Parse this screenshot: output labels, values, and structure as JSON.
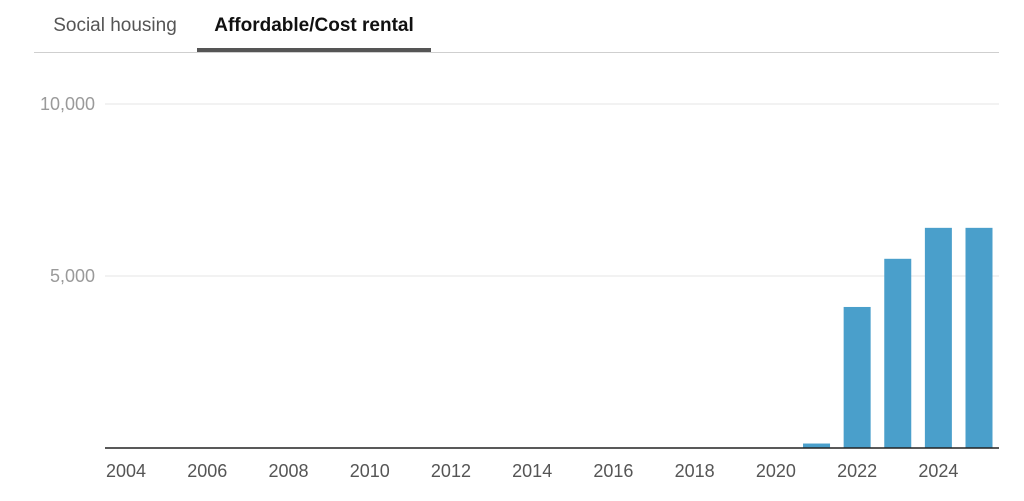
{
  "tabs": [
    {
      "label": "Social housing",
      "active": false
    },
    {
      "label": "Affordable/Cost rental",
      "active": true
    }
  ],
  "chart_data": {
    "type": "bar",
    "x": [
      2004,
      2005,
      2006,
      2007,
      2008,
      2009,
      2010,
      2011,
      2012,
      2013,
      2014,
      2015,
      2016,
      2017,
      2018,
      2019,
      2020,
      2021,
      2022,
      2023,
      2024,
      2025
    ],
    "values": [
      0,
      0,
      0,
      0,
      0,
      0,
      0,
      0,
      0,
      0,
      0,
      0,
      0,
      0,
      0,
      0,
      0,
      130,
      4100,
      5500,
      6400,
      6400
    ],
    "x_tick_labels": [
      "2004",
      "2006",
      "2008",
      "2010",
      "2012",
      "2014",
      "2016",
      "2018",
      "2020",
      "2022",
      "2024"
    ],
    "y_tick_labels": [
      "5,000",
      "10,000"
    ],
    "y_ticks": [
      5000,
      10000
    ],
    "ylim": [
      0,
      10000
    ],
    "bar_color": "#4a9fcb",
    "grid": true
  }
}
